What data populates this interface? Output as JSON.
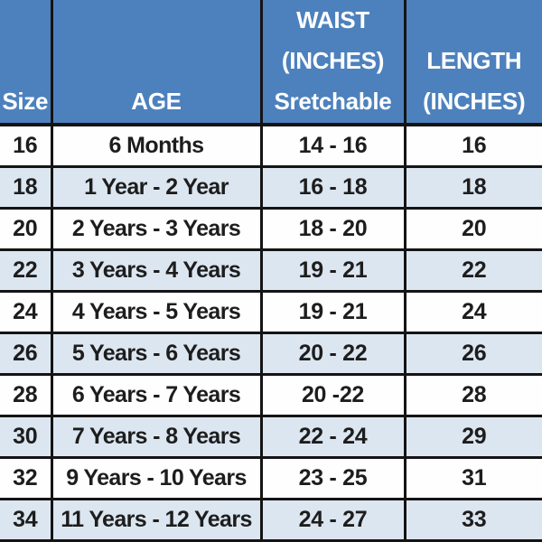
{
  "chart_data": {
    "type": "table",
    "columns": [
      "Size",
      "AGE",
      "WAIST\n(INCHES)\nSretchable",
      "LENGTH\n(INCHES)"
    ],
    "rows": [
      [
        "16",
        "6 Months",
        "14 - 16",
        "16"
      ],
      [
        "18",
        "1 Year - 2 Year",
        "16 - 18",
        "18"
      ],
      [
        "20",
        "2 Years - 3 Years",
        "18 - 20",
        "20"
      ],
      [
        "22",
        "3 Years - 4 Years",
        "19 - 21",
        "22"
      ],
      [
        "24",
        "4 Years - 5 Years",
        "19 - 21",
        "24"
      ],
      [
        "26",
        "5 Years - 6 Years",
        "20 - 22",
        "26"
      ],
      [
        "28",
        "6 Years - 7 Years",
        "20 -22",
        "28"
      ],
      [
        "30",
        "7 Years - 8 Years",
        "22 - 24",
        "29"
      ],
      [
        "32",
        "9 Years - 10 Years",
        "23 - 25",
        "31"
      ],
      [
        "34",
        "11 Years - 12 Years",
        "24 - 27",
        "33"
      ]
    ],
    "title": "",
    "legend": []
  },
  "colors": {
    "header_bg": "#4d81bd",
    "header_text": "#ffffff",
    "row_bg": "#fefefe",
    "row_alt_bg": "#dce6f1",
    "border": "#141414",
    "body_text": "#1d1d1d"
  }
}
